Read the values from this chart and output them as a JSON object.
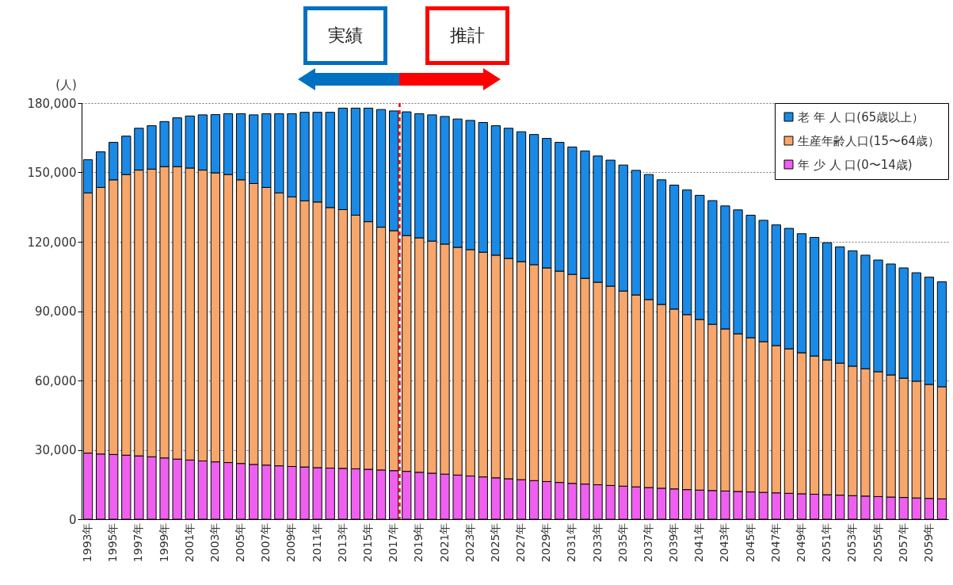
{
  "chart_data": {
    "type": "bar",
    "stacked": true,
    "ylabel": "(人)",
    "categories": [
      "1993年",
      null,
      "1995年",
      null,
      "1997年",
      null,
      "1999年",
      null,
      "2001年",
      null,
      "2003年",
      null,
      "2005年",
      null,
      "2007年",
      null,
      "2009年",
      null,
      "2011年",
      null,
      "2013年",
      null,
      "2015年",
      null,
      "2017年",
      null,
      "2019年",
      null,
      "2021年",
      null,
      "2023年",
      null,
      "2025年",
      null,
      "2027年",
      null,
      "2029年",
      null,
      "2031年",
      null,
      "2033年",
      null,
      "2035年",
      null,
      "2037年",
      null,
      "2039年",
      null,
      "2041年",
      null,
      "2043年",
      null,
      "2045年",
      null,
      "2047年",
      null,
      "2049年",
      null,
      "2051年",
      null,
      "2053年",
      null,
      "2055年",
      null,
      "2057年",
      null,
      "2059年",
      null
    ],
    "series": [
      {
        "name": "年 少 人 口(0〜14歳)",
        "color": "#f060f0",
        "values": [
          28600,
          28200,
          28000,
          27700,
          27400,
          27000,
          26500,
          26000,
          25600,
          25200,
          24800,
          24500,
          24100,
          23700,
          23400,
          23100,
          22800,
          22600,
          22300,
          22100,
          22000,
          21800,
          21600,
          21300,
          21000,
          20700,
          20300,
          19900,
          19500,
          19100,
          18700,
          18300,
          17900,
          17500,
          17100,
          16700,
          16300,
          15900,
          15500,
          15200,
          14900,
          14600,
          14300,
          14000,
          13700,
          13400,
          13100,
          12800,
          12600,
          12400,
          12200,
          12000,
          11800,
          11600,
          11400,
          11200,
          11000,
          10800,
          10600,
          10400,
          10200,
          10000,
          9800,
          9600,
          9400,
          9200,
          9000,
          8800
        ]
      },
      {
        "name": "生産年齢人口(15〜64歳）",
        "color": "#f7a66c",
        "values": [
          112500,
          115300,
          118800,
          121400,
          123600,
          124400,
          126000,
          126500,
          126300,
          125800,
          125000,
          124600,
          122700,
          121500,
          120100,
          118000,
          116600,
          115100,
          114900,
          112700,
          111900,
          109700,
          107100,
          105000,
          103800,
          102000,
          101400,
          100400,
          99500,
          98500,
          97900,
          97200,
          96300,
          95300,
          94300,
          93400,
          92400,
          91400,
          90400,
          89000,
          87600,
          86200,
          84400,
          83000,
          81300,
          79500,
          77800,
          75700,
          73800,
          71900,
          70100,
          68200,
          66700,
          65200,
          63700,
          62500,
          61000,
          59800,
          58300,
          57100,
          56000,
          55100,
          54000,
          52800,
          51600,
          50500,
          49300,
          48500
        ]
      },
      {
        "name": "老 年 人 口(65歳以上）",
        "color": "#1a8ae6",
        "values": [
          14400,
          15400,
          16200,
          16600,
          18100,
          18800,
          19500,
          21100,
          22500,
          23900,
          25200,
          26300,
          28600,
          29700,
          31900,
          34300,
          36000,
          38300,
          38800,
          41200,
          43900,
          46300,
          49100,
          50900,
          51800,
          53500,
          53700,
          54600,
          55200,
          55500,
          55900,
          56100,
          56000,
          56300,
          56200,
          56300,
          56000,
          55700,
          55100,
          55100,
          54600,
          54500,
          54500,
          53900,
          54100,
          53900,
          53600,
          53900,
          53700,
          53500,
          53200,
          53600,
          53000,
          52500,
          52200,
          52100,
          51500,
          51300,
          50700,
          50300,
          49900,
          49100,
          48300,
          48000,
          47700,
          46900,
          46400,
          45400
        ]
      }
    ],
    "ylim": [
      0,
      180000
    ],
    "yticks": [
      0,
      {
        "value": 30000,
        "label": "30,000"
      },
      {
        "value": 60000,
        "label": "60,000"
      },
      {
        "value": 90000,
        "label": "90,000"
      },
      {
        "value": 120000,
        "label": "120,000"
      },
      {
        "value": 150000,
        "label": "150,000"
      },
      {
        "value": 180000,
        "label": "180,000"
      }
    ],
    "grid": "y",
    "legend": "top right",
    "ref_lines": [
      {
        "axis": "x",
        "value": "2017年",
        "color": "#ff0000",
        "line_style": "dashed"
      }
    ],
    "annotations": [
      "実績",
      "推計"
    ]
  }
}
